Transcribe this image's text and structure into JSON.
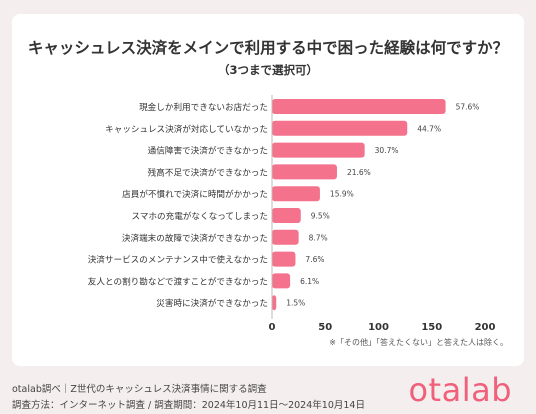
{
  "title": "キャッシュレス決済をメインで利用する中で困った経験は何ですか？",
  "subtitle": "（3つまで選択可）",
  "note": "※「その他」「答えたくない」と答えた人は除く。",
  "footer": {
    "line1": "otalab調べ｜Z世代のキャッシュレス決済事情に関する調査",
    "line2": "調査方法：インターネット調査 / 調査期間：2024年10月11日〜2024年10月14日"
  },
  "logo": "otalab",
  "colors": {
    "bar": "#f4728c",
    "accent": "#f0607a"
  },
  "chart_data": {
    "type": "bar",
    "orientation": "horizontal",
    "categories": [
      "現金しか利用できないお店だった",
      "キャッシュレス決済が対応していなかった",
      "通信障害で決済ができなかった",
      "残高不足で決済ができなかった",
      "店員が不慣れで決済に時間がかかった",
      "スマホの充電がなくなってしまった",
      "決済端末の故障で決済ができなかった",
      "決済サービスのメンテナンス中で使えなかった",
      "友人との割り勘などで渡すことができなかった",
      "災害時に決済ができなかった"
    ],
    "values": [
      163,
      127,
      87,
      61,
      45,
      27,
      25,
      22,
      17,
      4
    ],
    "value_labels": [
      "57.6%",
      "44.7%",
      "30.7%",
      "21.6%",
      "15.9%",
      "9.5%",
      "8.7%",
      "7.6%",
      "6.1%",
      "1.5%"
    ],
    "xlim": [
      0,
      200
    ],
    "xticks": [
      0,
      50,
      100,
      150,
      200
    ],
    "grid": false
  }
}
